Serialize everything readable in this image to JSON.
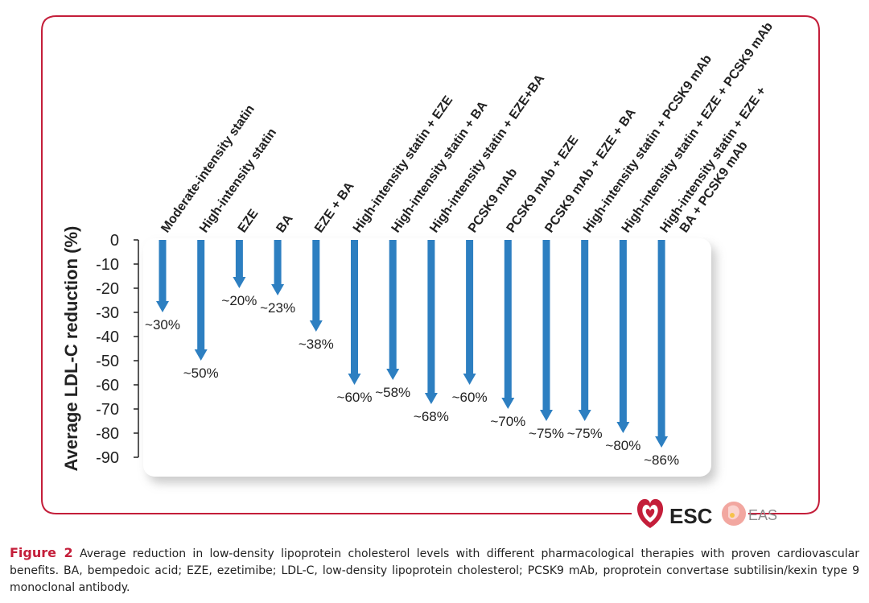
{
  "chart_data": {
    "type": "bar",
    "orientation": "vertical-downward-arrows",
    "ylabel": "Average LDL-C reduction (%)",
    "ylim": [
      -90,
      0
    ],
    "yticks": [
      0,
      -10,
      -20,
      -30,
      -40,
      -50,
      -60,
      -70,
      -80,
      -90
    ],
    "grid": false,
    "categories": [
      "Moderate-intensity statin",
      "High-intensity statin",
      "EZE",
      "BA",
      "EZE + BA",
      "High-intensity statin + EZE",
      "High-intensity statin + BA",
      "High-intensity statin + EZE+BA",
      "PCSK9 mAb",
      "PCSK9 mAb + EZE",
      "PCSK9 mAb + EZE + BA",
      "High-intensity statin + PCSK9 mAb",
      "High-intensity statin + EZE + PCSK9 mAb",
      "High-intensity statin + EZE + BA + PCSK9 mAb"
    ],
    "category_lines": [
      [
        "Moderate-intensity statin"
      ],
      [
        "High-intensity statin"
      ],
      [
        "EZE"
      ],
      [
        "BA"
      ],
      [
        "EZE + BA"
      ],
      [
        "High-intensity statin + EZE"
      ],
      [
        "High-intensity statin + BA"
      ],
      [
        "High-intensity statin + EZE+BA"
      ],
      [
        "PCSK9 mAb"
      ],
      [
        "PCSK9 mAb + EZE"
      ],
      [
        "PCSK9 mAb + EZE + BA"
      ],
      [
        "High-intensity statin + PCSK9 mAb"
      ],
      [
        "High-intensity statin + EZE + PCSK9 mAb"
      ],
      [
        "High-intensity statin + EZE +",
        "BA + PCSK9 mAb"
      ]
    ],
    "values": [
      -30,
      -50,
      -20,
      -23,
      -38,
      -60,
      -58,
      -68,
      -60,
      -70,
      -75,
      -75,
      -80,
      -86
    ],
    "data_labels": [
      "~30%",
      "~50%",
      "~20%",
      "~23%",
      "~38%",
      "~60%",
      "~58%",
      "~68%",
      "~60%",
      "~70%",
      "~75%",
      "~75%",
      "~80%",
      "~86%"
    ],
    "arrow_color": "#2d7fc1"
  },
  "logos": {
    "esc": "ESC",
    "eas": "EAS"
  },
  "caption": {
    "label": "Figure 2",
    "text": "Average reduction in low-density lipoprotein cholesterol levels with different pharmacological therapies with proven cardiovascular benefits. BA, bempedoic acid; EZE, ezetimibe; LDL-C, low-density lipoprotein cholesterol; PCSK9 mAb, proprotein convertase subtilisin/kexin type 9 monoclonal antibody."
  },
  "colors": {
    "frame": "#c41e3a",
    "arrow": "#2d7fc1",
    "panel": "#ffffff",
    "shadow": "#dcdcdc",
    "text": "#222222"
  }
}
